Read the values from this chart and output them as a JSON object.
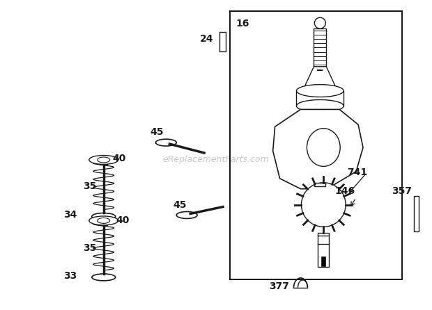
{
  "bg_color": "#ffffff",
  "line_color": "#1a1a1a",
  "fig_width": 6.2,
  "fig_height": 4.46,
  "dpi": 100,
  "watermark_text": "eReplacementParts.com",
  "watermark_color": "#bbbbbb",
  "watermark_fontsize": 9,
  "label_fontsize": 10,
  "label_fontweight": "bold"
}
